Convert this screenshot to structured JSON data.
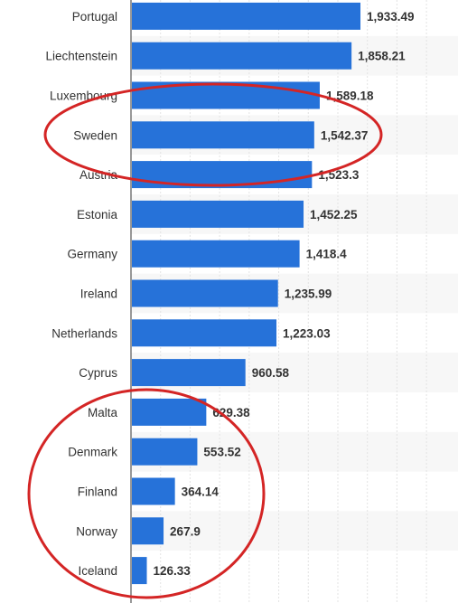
{
  "chart_data": {
    "type": "bar",
    "orientation": "horizontal",
    "title": "",
    "xlabel": "",
    "ylabel": "",
    "categories": [
      "Portugal",
      "Liechtenstein",
      "Luxembourg",
      "Sweden",
      "Austria",
      "Estonia",
      "Germany",
      "Ireland",
      "Netherlands",
      "Cyprus",
      "Malta",
      "Denmark",
      "Finland",
      "Norway",
      "Iceland"
    ],
    "values": [
      1933.49,
      1858.21,
      1589.18,
      1542.37,
      1523.3,
      1452.25,
      1418.4,
      1235.99,
      1223.03,
      960.58,
      629.38,
      553.52,
      364.14,
      267.9,
      126.33
    ],
    "value_labels": [
      "1,933.49",
      "1,858.21",
      "1,589.18",
      "1,542.37",
      "1,523.3",
      "1,452.25",
      "1,418.4",
      "1,235.99",
      "1,223.03",
      "960.58",
      "629.38",
      "553.52",
      "364.14",
      "267.9",
      "126.33"
    ],
    "xlim": [
      0,
      2500
    ],
    "grid": true,
    "colors": {
      "bar": "#2672d9",
      "stripe": "#f7f7f7",
      "grid": "#e3e3e3",
      "annotation": "#d42525"
    },
    "annotations": [
      {
        "shape": "ellipse",
        "encloses": [
          "Luxembourg",
          "Sweden",
          "Austria"
        ]
      },
      {
        "shape": "ellipse",
        "encloses": [
          "Malta",
          "Denmark",
          "Finland",
          "Norway",
          "Iceland"
        ]
      }
    ]
  }
}
